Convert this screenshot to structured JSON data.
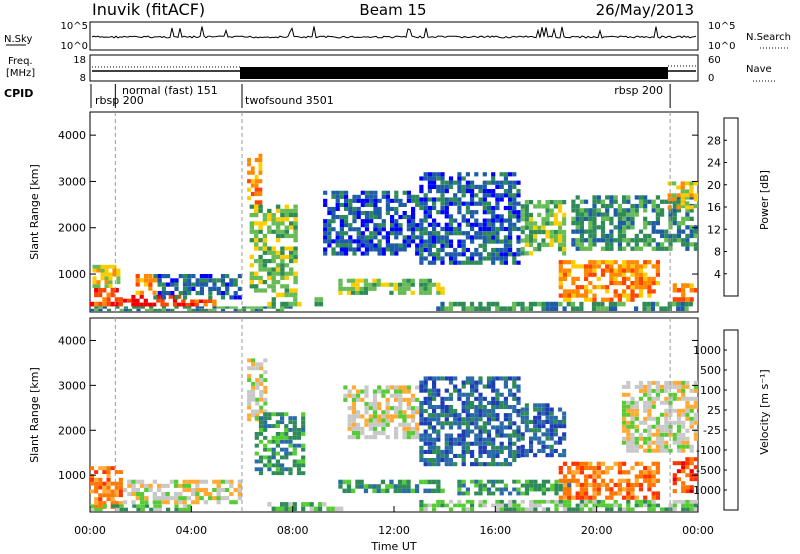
{
  "header": {
    "title": "Inuvik (fitACF)",
    "beam": "Beam 15",
    "date": "26/May/2013"
  },
  "top_panels": {
    "sky": {
      "label": "N.Sky",
      "ticks_left": [
        "10^5",
        "10^0"
      ],
      "right_label": "N.Search",
      "ticks_right": [
        "10^5",
        "10^0"
      ]
    },
    "freq": {
      "label_line1": "Freq.",
      "label_line2": "[MHz]",
      "ticks_left": [
        "18",
        "8"
      ],
      "right_label": "Nave",
      "ticks_right": [
        "60",
        "0"
      ]
    },
    "cpid": {
      "label": "CPID",
      "segments": [
        {
          "name": "rbsp 200",
          "start_h": 0.0,
          "end_h": 1.0
        },
        {
          "name": "normal (fast) 151",
          "start_h": 1.0,
          "end_h": 6.0
        },
        {
          "name": "twofsound 3501",
          "start_h": 6.0,
          "end_h": 22.9
        },
        {
          "name": "rbsp 200",
          "start_h": 22.9,
          "end_h": 24.0
        }
      ]
    }
  },
  "chart_data": [
    {
      "type": "heatmap",
      "name": "power",
      "ylabel": "Slant Range [km]",
      "ylim": [
        180,
        4500
      ],
      "y_ticks": [
        1000,
        2000,
        3000,
        4000
      ],
      "xlim_hours": [
        0,
        24
      ],
      "colorbar": {
        "label": "Power [dB]",
        "ticks": [
          "4",
          "8",
          "12",
          "16",
          "20",
          "24",
          "28"
        ],
        "colors": [
          "#0000ff",
          "#1f5ca8",
          "#2e8b57",
          "#66bb55",
          "#ffcc00",
          "#ff8800",
          "#ff4400",
          "#ee0000"
        ]
      },
      "regions": [
        {
          "t0": 0.0,
          "t1": 1.3,
          "r0": 300,
          "r1": 700,
          "level": 6
        },
        {
          "t0": 0.1,
          "t1": 1.2,
          "r0": 700,
          "r1": 1200,
          "level": 4
        },
        {
          "t0": 1.3,
          "t1": 3.6,
          "r0": 300,
          "r1": 550,
          "level": 7
        },
        {
          "t0": 1.8,
          "t1": 2.8,
          "r0": 550,
          "r1": 1000,
          "level": 5
        },
        {
          "t0": 3.6,
          "t1": 5.0,
          "r0": 300,
          "r1": 450,
          "level": 6
        },
        {
          "t0": 0.0,
          "t1": 8.0,
          "r0": 200,
          "r1": 300,
          "level": 2
        },
        {
          "t0": 2.5,
          "t1": 6.0,
          "r0": 450,
          "r1": 1000,
          "level": 1
        },
        {
          "t0": 6.2,
          "t1": 6.8,
          "r0": 2500,
          "r1": 3600,
          "level": 5
        },
        {
          "t0": 6.3,
          "t1": 8.2,
          "r0": 600,
          "r1": 2500,
          "level": 3
        },
        {
          "t0": 7.0,
          "t1": 9.2,
          "r0": 300,
          "r1": 600,
          "level": 3
        },
        {
          "t0": 9.8,
          "t1": 14.0,
          "r0": 550,
          "r1": 900,
          "level": 3
        },
        {
          "t0": 9.2,
          "t1": 13.0,
          "r0": 1400,
          "r1": 2800,
          "level": 1
        },
        {
          "t0": 13.0,
          "t1": 17.0,
          "r0": 1200,
          "r1": 3200,
          "level": 1
        },
        {
          "t0": 13.5,
          "t1": 23.8,
          "r0": 200,
          "r1": 400,
          "level": 2
        },
        {
          "t0": 17.0,
          "t1": 18.8,
          "r0": 1400,
          "r1": 2600,
          "level": 3
        },
        {
          "t0": 18.5,
          "t1": 22.5,
          "r0": 400,
          "r1": 1300,
          "level": 5
        },
        {
          "t0": 19.0,
          "t1": 24.0,
          "r0": 1500,
          "r1": 2700,
          "level": 2
        },
        {
          "t0": 22.8,
          "t1": 24.0,
          "r0": 2400,
          "r1": 3000,
          "level": 4
        },
        {
          "t0": 23.0,
          "t1": 24.0,
          "r0": 400,
          "r1": 800,
          "level": 5
        }
      ]
    },
    {
      "type": "heatmap",
      "name": "velocity",
      "xlabel": "Time UT",
      "ylabel": "Slant Range [km]",
      "ylim": [
        180,
        4500
      ],
      "y_ticks": [
        1000,
        2000,
        3000,
        4000
      ],
      "xlim_hours": [
        0,
        24
      ],
      "x_ticks": [
        "00:00",
        "04:00",
        "08:00",
        "12:00",
        "16:00",
        "20:00",
        "00:00"
      ],
      "colorbar": {
        "label": "Velocity [m s⁻¹]",
        "ticks": [
          "1000",
          "500",
          "100",
          "25",
          "-25",
          "-100",
          "-500",
          "-1000"
        ],
        "colors": [
          "#1e3cb4",
          "#2a6aa8",
          "#2e8b57",
          "#55cc33",
          "#c8c8c8",
          "#ffaa33",
          "#ff7700",
          "#ff3300",
          "#ee0000"
        ]
      },
      "regions": [
        {
          "t0": 0.0,
          "t1": 1.3,
          "r0": 250,
          "r1": 1200,
          "level": 6
        },
        {
          "t0": 0.0,
          "t1": 4.0,
          "r0": 200,
          "r1": 350,
          "level": 3
        },
        {
          "t0": 1.3,
          "t1": 6.0,
          "r0": 350,
          "r1": 900,
          "level": 4
        },
        {
          "t0": 6.2,
          "t1": 7.0,
          "r0": 2200,
          "r1": 3600,
          "level": 4
        },
        {
          "t0": 6.5,
          "t1": 8.5,
          "r0": 1000,
          "r1": 2400,
          "level": 2
        },
        {
          "t0": 7.0,
          "t1": 10.0,
          "r0": 200,
          "r1": 400,
          "level": 3
        },
        {
          "t0": 9.8,
          "t1": 14.0,
          "r0": 600,
          "r1": 900,
          "level": 2
        },
        {
          "t0": 10.0,
          "t1": 13.0,
          "r0": 1800,
          "r1": 3000,
          "level": 4
        },
        {
          "t0": 13.0,
          "t1": 17.0,
          "r0": 1200,
          "r1": 3200,
          "level": 1
        },
        {
          "t0": 13.0,
          "t1": 24.0,
          "r0": 200,
          "r1": 450,
          "level": 3
        },
        {
          "t0": 14.5,
          "t1": 19.0,
          "r0": 550,
          "r1": 900,
          "level": 2
        },
        {
          "t0": 17.0,
          "t1": 18.8,
          "r0": 1400,
          "r1": 2600,
          "level": 1
        },
        {
          "t0": 18.5,
          "t1": 22.5,
          "r0": 450,
          "r1": 1300,
          "level": 6
        },
        {
          "t0": 21.0,
          "t1": 24.0,
          "r0": 1500,
          "r1": 3100,
          "level": 4
        },
        {
          "t0": 23.0,
          "t1": 24.0,
          "r0": 600,
          "r1": 1400,
          "level": 7
        }
      ]
    }
  ]
}
